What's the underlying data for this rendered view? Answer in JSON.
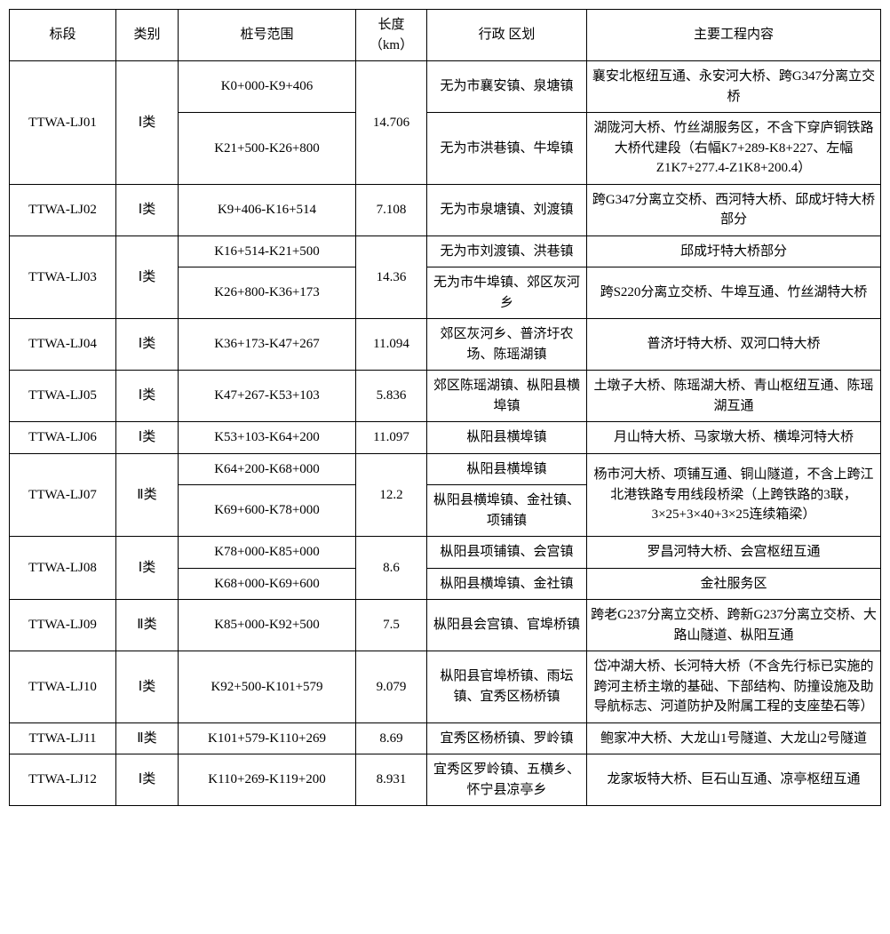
{
  "table": {
    "headers": {
      "section": "标段",
      "category": "类别",
      "range": "桩号范围",
      "length": "长度\n（km）",
      "district": "行政\n区划",
      "content": "主要工程内容"
    },
    "rows": [
      {
        "section": "TTWA-LJ01",
        "category": "Ⅰ类",
        "length": "14.706",
        "subrows": [
          {
            "range": "K0+000-K9+406",
            "district": "无为市襄安镇、泉塘镇",
            "content": "襄安北枢纽互通、永安河大桥、跨G347分离立交桥"
          },
          {
            "range": "K21+500-K26+800",
            "district": "无为市洪巷镇、牛埠镇",
            "content": "湖陇河大桥、竹丝湖服务区，不含下穿庐铜铁路大桥代建段（右幅K7+289-K8+227、左幅Z1K7+277.4-Z1K8+200.4）"
          }
        ]
      },
      {
        "section": "TTWA-LJ02",
        "category": "Ⅰ类",
        "length": "7.108",
        "subrows": [
          {
            "range": "K9+406-K16+514",
            "district": "无为市泉塘镇、刘渡镇",
            "content": "跨G347分离立交桥、西河特大桥、邱成圩特大桥部分"
          }
        ]
      },
      {
        "section": "TTWA-LJ03",
        "category": "Ⅰ类",
        "length": "14.36",
        "subrows": [
          {
            "range": "K16+514-K21+500",
            "district": "无为市刘渡镇、洪巷镇",
            "content": "邱成圩特大桥部分"
          },
          {
            "range": "K26+800-K36+173",
            "district": "无为市牛埠镇、郊区灰河乡",
            "content": "跨S220分离立交桥、牛埠互通、竹丝湖特大桥"
          }
        ]
      },
      {
        "section": "TTWA-LJ04",
        "category": "Ⅰ类",
        "length": "11.094",
        "subrows": [
          {
            "range": "K36+173-K47+267",
            "district": "郊区灰河乡、普济圩农场、陈瑶湖镇",
            "content": "普济圩特大桥、双河口特大桥"
          }
        ]
      },
      {
        "section": "TTWA-LJ05",
        "category": "Ⅰ类",
        "length": "5.836",
        "subrows": [
          {
            "range": "K47+267-K53+103",
            "district": "郊区陈瑶湖镇、枞阳县横埠镇",
            "content": "土墩子大桥、陈瑶湖大桥、青山枢纽互通、陈瑶湖互通"
          }
        ]
      },
      {
        "section": "TTWA-LJ06",
        "category": "Ⅰ类",
        "length": "11.097",
        "subrows": [
          {
            "range": "K53+103-K64+200",
            "district": "枞阳县横埠镇",
            "content": "月山特大桥、马家墩大桥、横埠河特大桥"
          }
        ]
      },
      {
        "section": "TTWA-LJ07",
        "category": "Ⅱ类",
        "length": "12.2",
        "subrows": [
          {
            "range": "K64+200-K68+000",
            "district": "枞阳县横埠镇",
            "content": "杨市河大桥、项铺互通、铜山隧道，不含上跨江北港铁路专用线段桥梁（上跨铁路的3联，3×25+3×40+3×25连续箱梁）",
            "contentRowspan": 2
          },
          {
            "range": "K69+600-K78+000",
            "district": "枞阳县横埠镇、金社镇、项铺镇"
          }
        ]
      },
      {
        "section": "TTWA-LJ08",
        "category": "Ⅰ类",
        "length": "8.6",
        "subrows": [
          {
            "range": "K78+000-K85+000",
            "district": "枞阳县项铺镇、会宫镇",
            "content": "罗昌河特大桥、会宫枢纽互通"
          },
          {
            "range": "K68+000-K69+600",
            "district": "枞阳县横埠镇、金社镇",
            "content": "金社服务区"
          }
        ]
      },
      {
        "section": "TTWA-LJ09",
        "category": "Ⅱ类",
        "length": "7.5",
        "subrows": [
          {
            "range": "K85+000-K92+500",
            "district": "枞阳县会宫镇、官埠桥镇",
            "content": "跨老G237分离立交桥、跨新G237分离立交桥、大路山隧道、枞阳互通"
          }
        ]
      },
      {
        "section": "TTWA-LJ10",
        "category": "Ⅰ类",
        "length": "9.079",
        "subrows": [
          {
            "range": "K92+500-K101+579",
            "district": "枞阳县官埠桥镇、雨坛镇、宜秀区杨桥镇",
            "content": "岱冲湖大桥、长河特大桥（不含先行标已实施的跨河主桥主墩的基础、下部结构、防撞设施及助导航标志、河道防护及附属工程的支座垫石等）"
          }
        ]
      },
      {
        "section": "TTWA-LJ11",
        "category": "Ⅱ类",
        "length": "8.69",
        "subrows": [
          {
            "range": "K101+579-K110+269",
            "district": "宜秀区杨桥镇、罗岭镇",
            "content": "鲍家冲大桥、大龙山1号隧道、大龙山2号隧道"
          }
        ]
      },
      {
        "section": "TTWA-LJ12",
        "category": "Ⅰ类",
        "length": "8.931",
        "subrows": [
          {
            "range": "K110+269-K119+200",
            "district": "宜秀区罗岭镇、五横乡、怀宁县凉亭乡",
            "content": "龙家坂特大桥、巨石山互通、凉亭枢纽互通"
          }
        ]
      }
    ]
  },
  "styling": {
    "font_family": "SimSun",
    "font_size": 15,
    "border_color": "#000000",
    "background_color": "#ffffff",
    "text_color": "#000000",
    "column_widths": {
      "section": 120,
      "category": 70,
      "range": 200,
      "length": 80,
      "district": 180
    }
  }
}
